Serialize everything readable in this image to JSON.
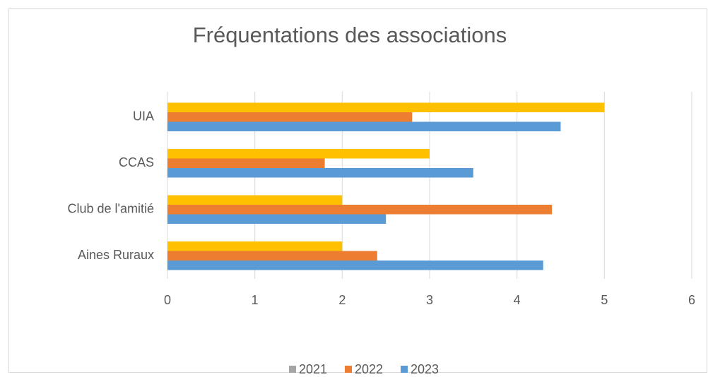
{
  "chart_data": {
    "type": "hbar",
    "title": "Fréquentations des associations",
    "categories": [
      "Aines Ruraux",
      "Club de l'amitié",
      "CCAS",
      "UIA"
    ],
    "series": [
      {
        "name": "2021",
        "color": "#ffc000",
        "legend_color": "#a5a5a5",
        "values": [
          2,
          2,
          3,
          5
        ]
      },
      {
        "name": "2022",
        "color": "#ed7d31",
        "values": [
          2.4,
          4.4,
          1.8,
          2.8
        ]
      },
      {
        "name": "2023",
        "color": "#5b9bd5",
        "values": [
          4.3,
          2.5,
          3.5,
          4.5
        ]
      }
    ],
    "xlim": [
      0,
      6
    ],
    "xticks": [
      0,
      1,
      2,
      3,
      4,
      5,
      6
    ],
    "grid": true,
    "legend": "bottom"
  }
}
